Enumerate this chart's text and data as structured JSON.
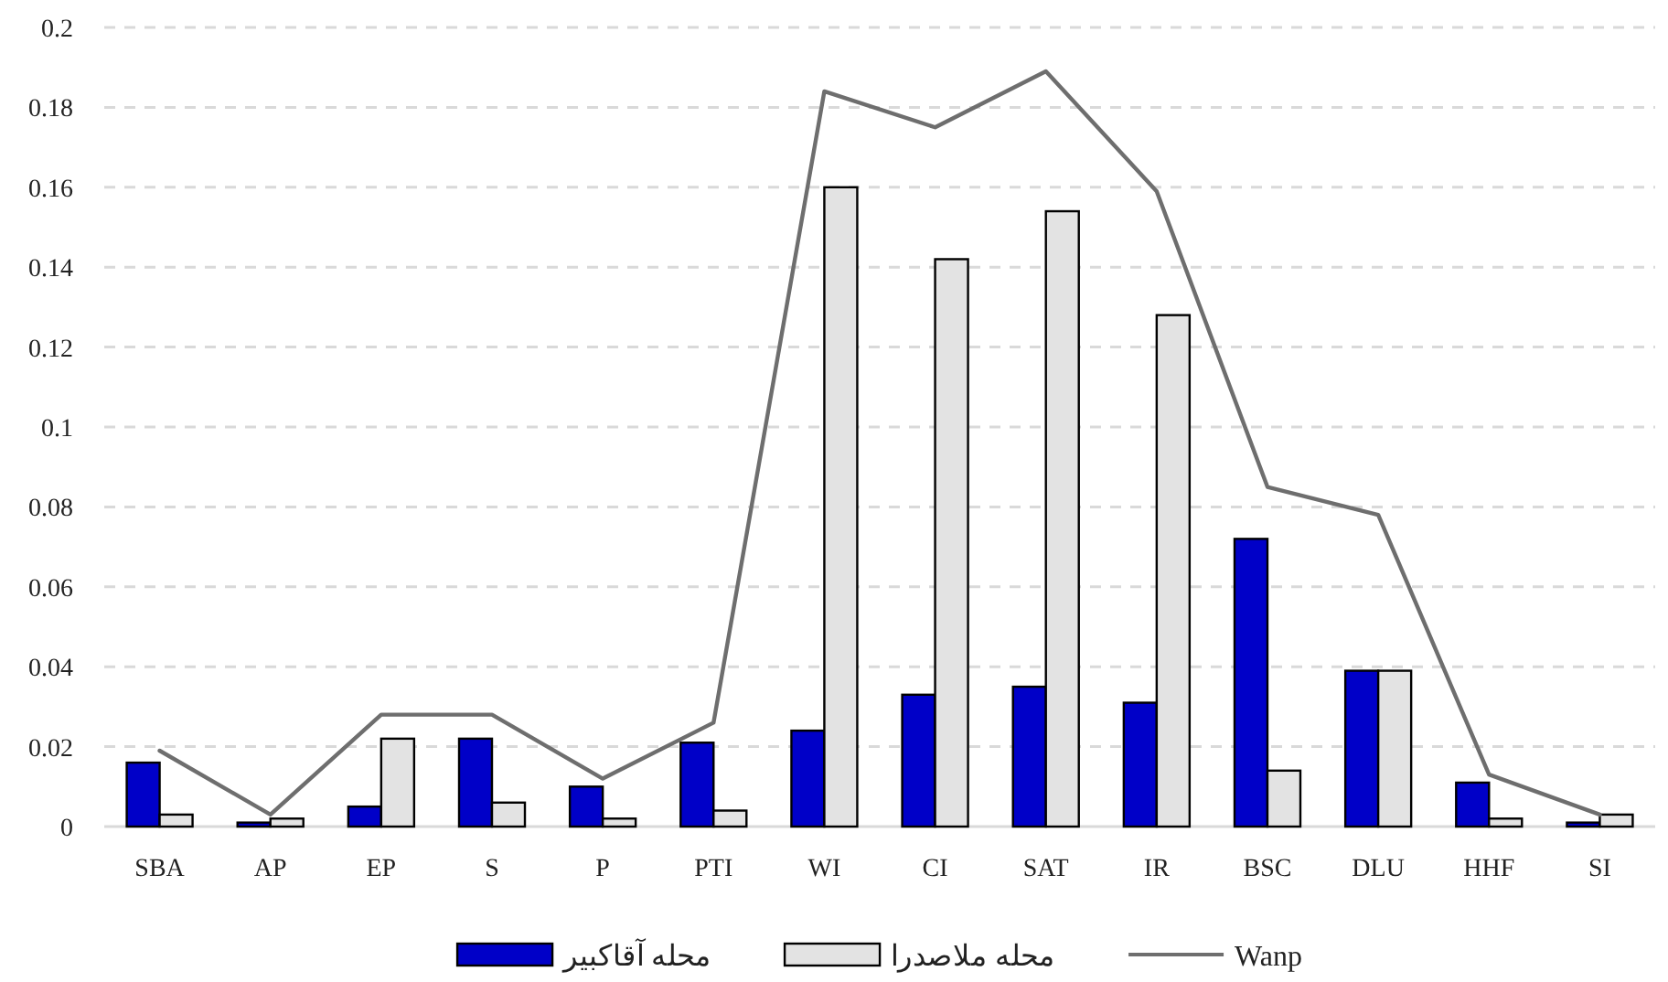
{
  "chart_data": {
    "type": "bar",
    "categories": [
      "SBA",
      "AP",
      "EP",
      "S",
      "P",
      "PTI",
      "WI",
      "CI",
      "SAT",
      "IR",
      "BSC",
      "DLU",
      "HHF",
      "SI"
    ],
    "series": [
      {
        "name": "محله آقاکبیر",
        "color": "#0000c8",
        "values": [
          0.016,
          0.001,
          0.005,
          0.022,
          0.01,
          0.021,
          0.024,
          0.033,
          0.035,
          0.031,
          0.072,
          0.039,
          0.011,
          0.001
        ]
      },
      {
        "name": "محله ملاصدرا",
        "color": "#e3e3e3",
        "values": [
          0.003,
          0.002,
          0.022,
          0.006,
          0.002,
          0.004,
          0.16,
          0.142,
          0.154,
          0.128,
          0.014,
          0.039,
          0.002,
          0.003
        ]
      },
      {
        "name": "Wanp",
        "type": "line",
        "color": "#6e6e6e",
        "values": [
          0.019,
          0.003,
          0.028,
          0.028,
          0.012,
          0.026,
          0.184,
          0.175,
          0.189,
          0.159,
          0.085,
          0.078,
          0.013,
          0.003
        ]
      }
    ],
    "ylim": [
      0,
      0.2
    ],
    "yticks": [
      0,
      {
        "value": 0.02,
        "label": "0.02"
      },
      {
        "value": 0.04,
        "label": "0.04"
      },
      {
        "value": 0.06,
        "label": "0.06"
      },
      {
        "value": 0.08,
        "label": "0.08"
      },
      {
        "value": 0.1,
        "label": "0.1"
      },
      {
        "value": 0.12,
        "label": "0.12"
      },
      {
        "value": 0.14,
        "label": "0.14"
      },
      {
        "value": 0.16,
        "label": "0.16"
      },
      {
        "value": 0.18,
        "label": "0.18"
      },
      {
        "value": 0.2,
        "label": "0.2"
      }
    ],
    "grid": "y",
    "legend": "bottom",
    "line_style": "solid",
    "marker": "none"
  }
}
